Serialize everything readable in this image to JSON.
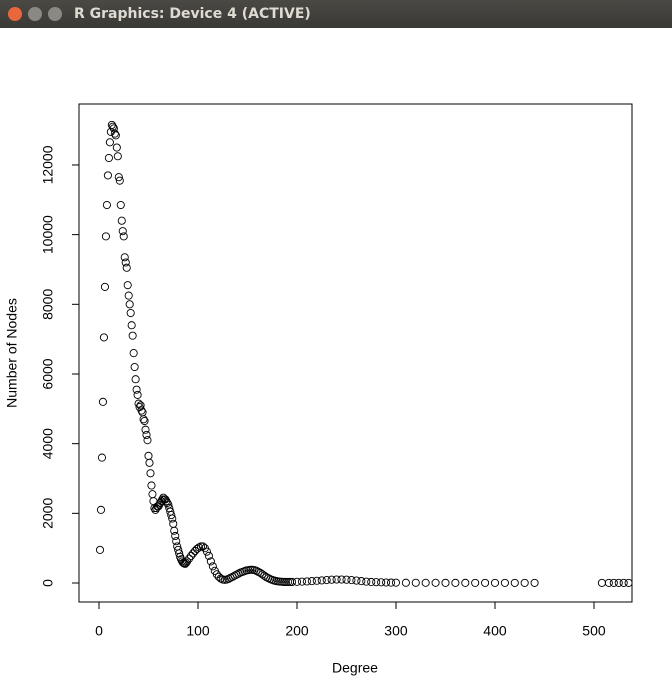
{
  "window": {
    "title": "R Graphics: Device 4 (ACTIVE)"
  },
  "chart_data": {
    "type": "scatter",
    "xlabel": "Degree",
    "ylabel": "Number of Nodes",
    "color": "#000000",
    "x": [
      1,
      2,
      3,
      4,
      5,
      6,
      7,
      8,
      9,
      10,
      11,
      12,
      13,
      14,
      15,
      16,
      17,
      18,
      19,
      20,
      21,
      22,
      23,
      24,
      25,
      26,
      27,
      28,
      29,
      30,
      31,
      32,
      33,
      34,
      35,
      36,
      37,
      38,
      39,
      40,
      41,
      42,
      43,
      44,
      45,
      46,
      47,
      48,
      49,
      50,
      51,
      52,
      53,
      54,
      55,
      56,
      57,
      58,
      59,
      60,
      61,
      62,
      63,
      64,
      65,
      66,
      67,
      68,
      69,
      70,
      71,
      72,
      73,
      74,
      75,
      76,
      77,
      78,
      79,
      80,
      81,
      82,
      83,
      84,
      85,
      86,
      87,
      88,
      89,
      91,
      93,
      95,
      97,
      99,
      101,
      103,
      105,
      107,
      109,
      111,
      113,
      115,
      117,
      119,
      121,
      123,
      125,
      127,
      129,
      131,
      133,
      135,
      137,
      139,
      141,
      143,
      145,
      147,
      149,
      151,
      153,
      155,
      157,
      159,
      161,
      163,
      165,
      167,
      169,
      171,
      173,
      175,
      177,
      179,
      181,
      183,
      185,
      187,
      189,
      191,
      193,
      195,
      200,
      205,
      210,
      215,
      220,
      225,
      230,
      235,
      240,
      245,
      250,
      255,
      260,
      265,
      270,
      275,
      280,
      285,
      290,
      295,
      300,
      310,
      320,
      330,
      340,
      350,
      360,
      370,
      380,
      390,
      400,
      410,
      420,
      430,
      440,
      508,
      515,
      520,
      525,
      530,
      535
    ],
    "values": [
      950,
      2100,
      3600,
      5200,
      7050,
      8500,
      9950,
      10850,
      11700,
      12200,
      12650,
      12950,
      13150,
      13100,
      13050,
      12900,
      12850,
      12500,
      12250,
      11650,
      11550,
      10850,
      10400,
      10100,
      9950,
      9350,
      9200,
      9050,
      8550,
      8250,
      8000,
      7750,
      7400,
      7100,
      6600,
      6200,
      5850,
      5550,
      5400,
      5150,
      5050,
      5100,
      4950,
      4900,
      4700,
      4650,
      4400,
      4250,
      4100,
      3650,
      3450,
      3150,
      2800,
      2550,
      2350,
      2150,
      2100,
      2150,
      2200,
      2200,
      2250,
      2300,
      2350,
      2400,
      2450,
      2400,
      2400,
      2350,
      2300,
      2250,
      2150,
      2050,
      1950,
      1850,
      1700,
      1500,
      1350,
      1200,
      1050,
      950,
      850,
      750,
      680,
      620,
      580,
      560,
      550,
      580,
      620,
      700,
      780,
      850,
      920,
      980,
      1020,
      1050,
      1050,
      1000,
      900,
      780,
      620,
      480,
      350,
      250,
      180,
      130,
      100,
      90,
      100,
      120,
      150,
      180,
      210,
      240,
      270,
      300,
      320,
      340,
      360,
      370,
      380,
      380,
      370,
      350,
      320,
      290,
      250,
      210,
      170,
      140,
      110,
      90,
      70,
      55,
      45,
      40,
      35,
      30,
      30,
      30,
      30,
      30,
      35,
      40,
      45,
      55,
      65,
      75,
      85,
      95,
      100,
      100,
      95,
      85,
      70,
      55,
      40,
      30,
      25,
      20,
      15,
      12,
      10,
      8,
      7,
      6,
      6,
      5,
      5,
      5,
      4,
      4,
      4,
      4,
      3,
      3,
      3,
      3,
      3,
      3,
      3,
      3,
      3
    ],
    "xlim": [
      -20.2,
      538.4
    ],
    "ylim": [
      -545,
      13750
    ],
    "xticks": [
      0,
      100,
      200,
      300,
      400,
      500
    ],
    "yticks": [
      0,
      2000,
      4000,
      6000,
      8000,
      10000,
      12000
    ]
  }
}
